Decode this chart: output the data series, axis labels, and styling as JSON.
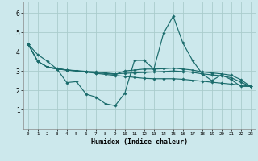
{
  "xlabel": "Humidex (Indice chaleur)",
  "background_color": "#cce8ec",
  "grid_color": "#aacccc",
  "line_color": "#1a6b6b",
  "xlim": [
    -0.5,
    23.5
  ],
  "ylim": [
    0,
    6.6
  ],
  "xtick_labels": [
    "0",
    "1",
    "2",
    "3",
    "4",
    "5",
    "6",
    "7",
    "8",
    "9",
    "10",
    "11",
    "12",
    "13",
    "14",
    "15",
    "16",
    "17",
    "18",
    "19",
    "20",
    "21",
    "22",
    "23"
  ],
  "yticks": [
    1,
    2,
    3,
    4,
    5,
    6
  ],
  "series": [
    [
      4.4,
      3.85,
      3.5,
      3.1,
      2.4,
      2.45,
      1.8,
      1.65,
      1.3,
      1.2,
      1.85,
      3.55,
      3.55,
      3.1,
      4.95,
      5.85,
      4.45,
      3.55,
      2.85,
      2.5,
      2.8,
      2.55,
      2.2,
      2.2
    ],
    [
      4.4,
      3.5,
      3.2,
      3.15,
      3.05,
      3.0,
      2.95,
      2.9,
      2.87,
      2.82,
      3.0,
      3.05,
      3.1,
      3.1,
      3.12,
      3.15,
      3.1,
      3.05,
      2.95,
      2.9,
      2.85,
      2.78,
      2.55,
      2.2
    ],
    [
      4.4,
      3.5,
      3.2,
      3.1,
      3.05,
      3.02,
      2.98,
      2.95,
      2.9,
      2.85,
      2.88,
      2.9,
      2.92,
      2.95,
      2.97,
      3.0,
      2.97,
      2.93,
      2.85,
      2.8,
      2.75,
      2.65,
      2.42,
      2.2
    ],
    [
      4.4,
      3.5,
      3.2,
      3.1,
      3.05,
      3.0,
      2.95,
      2.88,
      2.82,
      2.77,
      2.72,
      2.67,
      2.62,
      2.6,
      2.6,
      2.6,
      2.57,
      2.52,
      2.47,
      2.42,
      2.37,
      2.32,
      2.27,
      2.2
    ]
  ]
}
